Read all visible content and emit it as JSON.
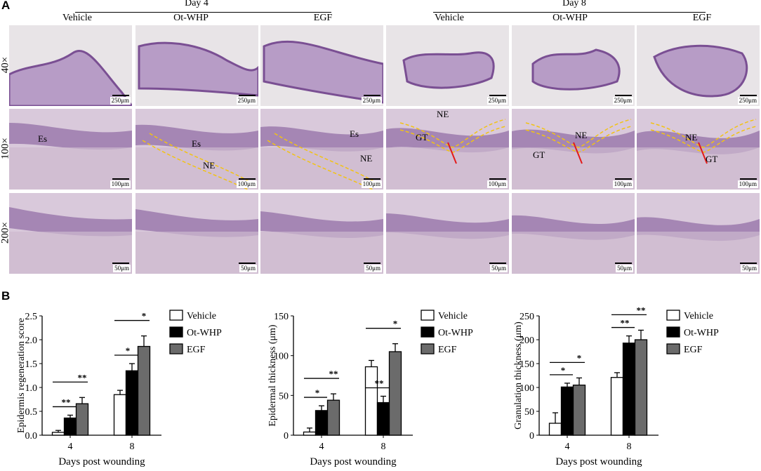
{
  "figure": {
    "panel_a": "A",
    "panel_b": "B",
    "day_labels": [
      "Day 4",
      "Day 8"
    ],
    "groups": [
      "Vehicle",
      "Ot-WHP",
      "EGF",
      "Vehicle",
      "Ot-WHP",
      "EGF"
    ],
    "magnifications": [
      "40×",
      "100×",
      "200×"
    ],
    "scale_bars": [
      "250μm",
      "100μm",
      "50μm"
    ],
    "annotations": {
      "es": "Es",
      "ne": "NE",
      "gt": "GT"
    }
  },
  "colors": {
    "tissue": "#b79cc6",
    "tissue_dark": "#7a4f93",
    "background": "#e8e4e7",
    "dashed": "#f2c313",
    "arrow": "#e21b1b",
    "bar_vehicle": "#ffffff",
    "bar_otwhp": "#000000",
    "bar_egf": "#6b6b6b"
  },
  "chart_data": [
    {
      "type": "bar",
      "categories": [
        "4",
        "8"
      ],
      "xlabel": "Days post wounding",
      "ylabel": "Epidermis regeneration score",
      "ylim": [
        0,
        2.5
      ],
      "yticks": [
        "0.0",
        "0.5",
        "1.0",
        "1.5",
        "2.0",
        "2.5"
      ],
      "series": [
        {
          "name": "Vehicle",
          "values": [
            0.06,
            0.85
          ],
          "errors": [
            0.04,
            0.09
          ]
        },
        {
          "name": "Ot-WHP",
          "values": [
            0.36,
            1.35
          ],
          "errors": [
            0.06,
            0.15
          ]
        },
        {
          "name": "EGF",
          "values": [
            0.66,
            1.86
          ],
          "errors": [
            0.13,
            0.22
          ]
        }
      ],
      "significance": [
        {
          "day": "4",
          "from": "Vehicle",
          "to": "Ot-WHP",
          "label": "**"
        },
        {
          "day": "4",
          "from": "Vehicle",
          "to": "EGF",
          "label": "**"
        },
        {
          "day": "8",
          "from": "Vehicle",
          "to": "Ot-WHP",
          "label": "*"
        },
        {
          "day": "8",
          "from": "Vehicle",
          "to": "EGF",
          "label": "*"
        }
      ],
      "legend": "top-right"
    },
    {
      "type": "bar",
      "categories": [
        "4",
        "8"
      ],
      "xlabel": "Days post wounding",
      "ylabel": "Epidermal thickness (μm)",
      "ylim": [
        0,
        150
      ],
      "yticks": [
        "0",
        "50",
        "100",
        "150"
      ],
      "series": [
        {
          "name": "Vehicle",
          "values": [
            4,
            86
          ],
          "errors": [
            5,
            8
          ]
        },
        {
          "name": "Ot-WHP",
          "values": [
            31,
            41
          ],
          "errors": [
            6,
            8
          ]
        },
        {
          "name": "EGF",
          "values": [
            44,
            105
          ],
          "errors": [
            8,
            10
          ]
        }
      ],
      "significance": [
        {
          "day": "4",
          "from": "Vehicle",
          "to": "Ot-WHP",
          "label": "*"
        },
        {
          "day": "4",
          "from": "Vehicle",
          "to": "EGF",
          "label": "**"
        },
        {
          "day": "8",
          "from": "Vehicle",
          "to": "Ot-WHP",
          "label": "**"
        },
        {
          "day": "8",
          "from": "Vehicle",
          "to": "EGF",
          "label": "*"
        }
      ],
      "legend": "top-right"
    },
    {
      "type": "bar",
      "categories": [
        "4",
        "8"
      ],
      "xlabel": "Days post wounding",
      "ylabel": "Granulation thickness (μm)",
      "ylim": [
        0,
        250
      ],
      "yticks": [
        "0",
        "50",
        "100",
        "150",
        "200",
        "250"
      ],
      "series": [
        {
          "name": "Vehicle",
          "values": [
            25,
            121
          ],
          "errors": [
            22,
            10
          ]
        },
        {
          "name": "Ot-WHP",
          "values": [
            101,
            193
          ],
          "errors": [
            8,
            15
          ]
        },
        {
          "name": "EGF",
          "values": [
            105,
            200
          ],
          "errors": [
            15,
            20
          ]
        }
      ],
      "significance": [
        {
          "day": "4",
          "from": "Vehicle",
          "to": "Ot-WHP",
          "label": "*"
        },
        {
          "day": "4",
          "from": "Vehicle",
          "to": "EGF",
          "label": "*"
        },
        {
          "day": "8",
          "from": "Vehicle",
          "to": "Ot-WHP",
          "label": "**"
        },
        {
          "day": "8",
          "from": "Vehicle",
          "to": "EGF",
          "label": "**"
        }
      ],
      "legend": "top-right"
    }
  ]
}
